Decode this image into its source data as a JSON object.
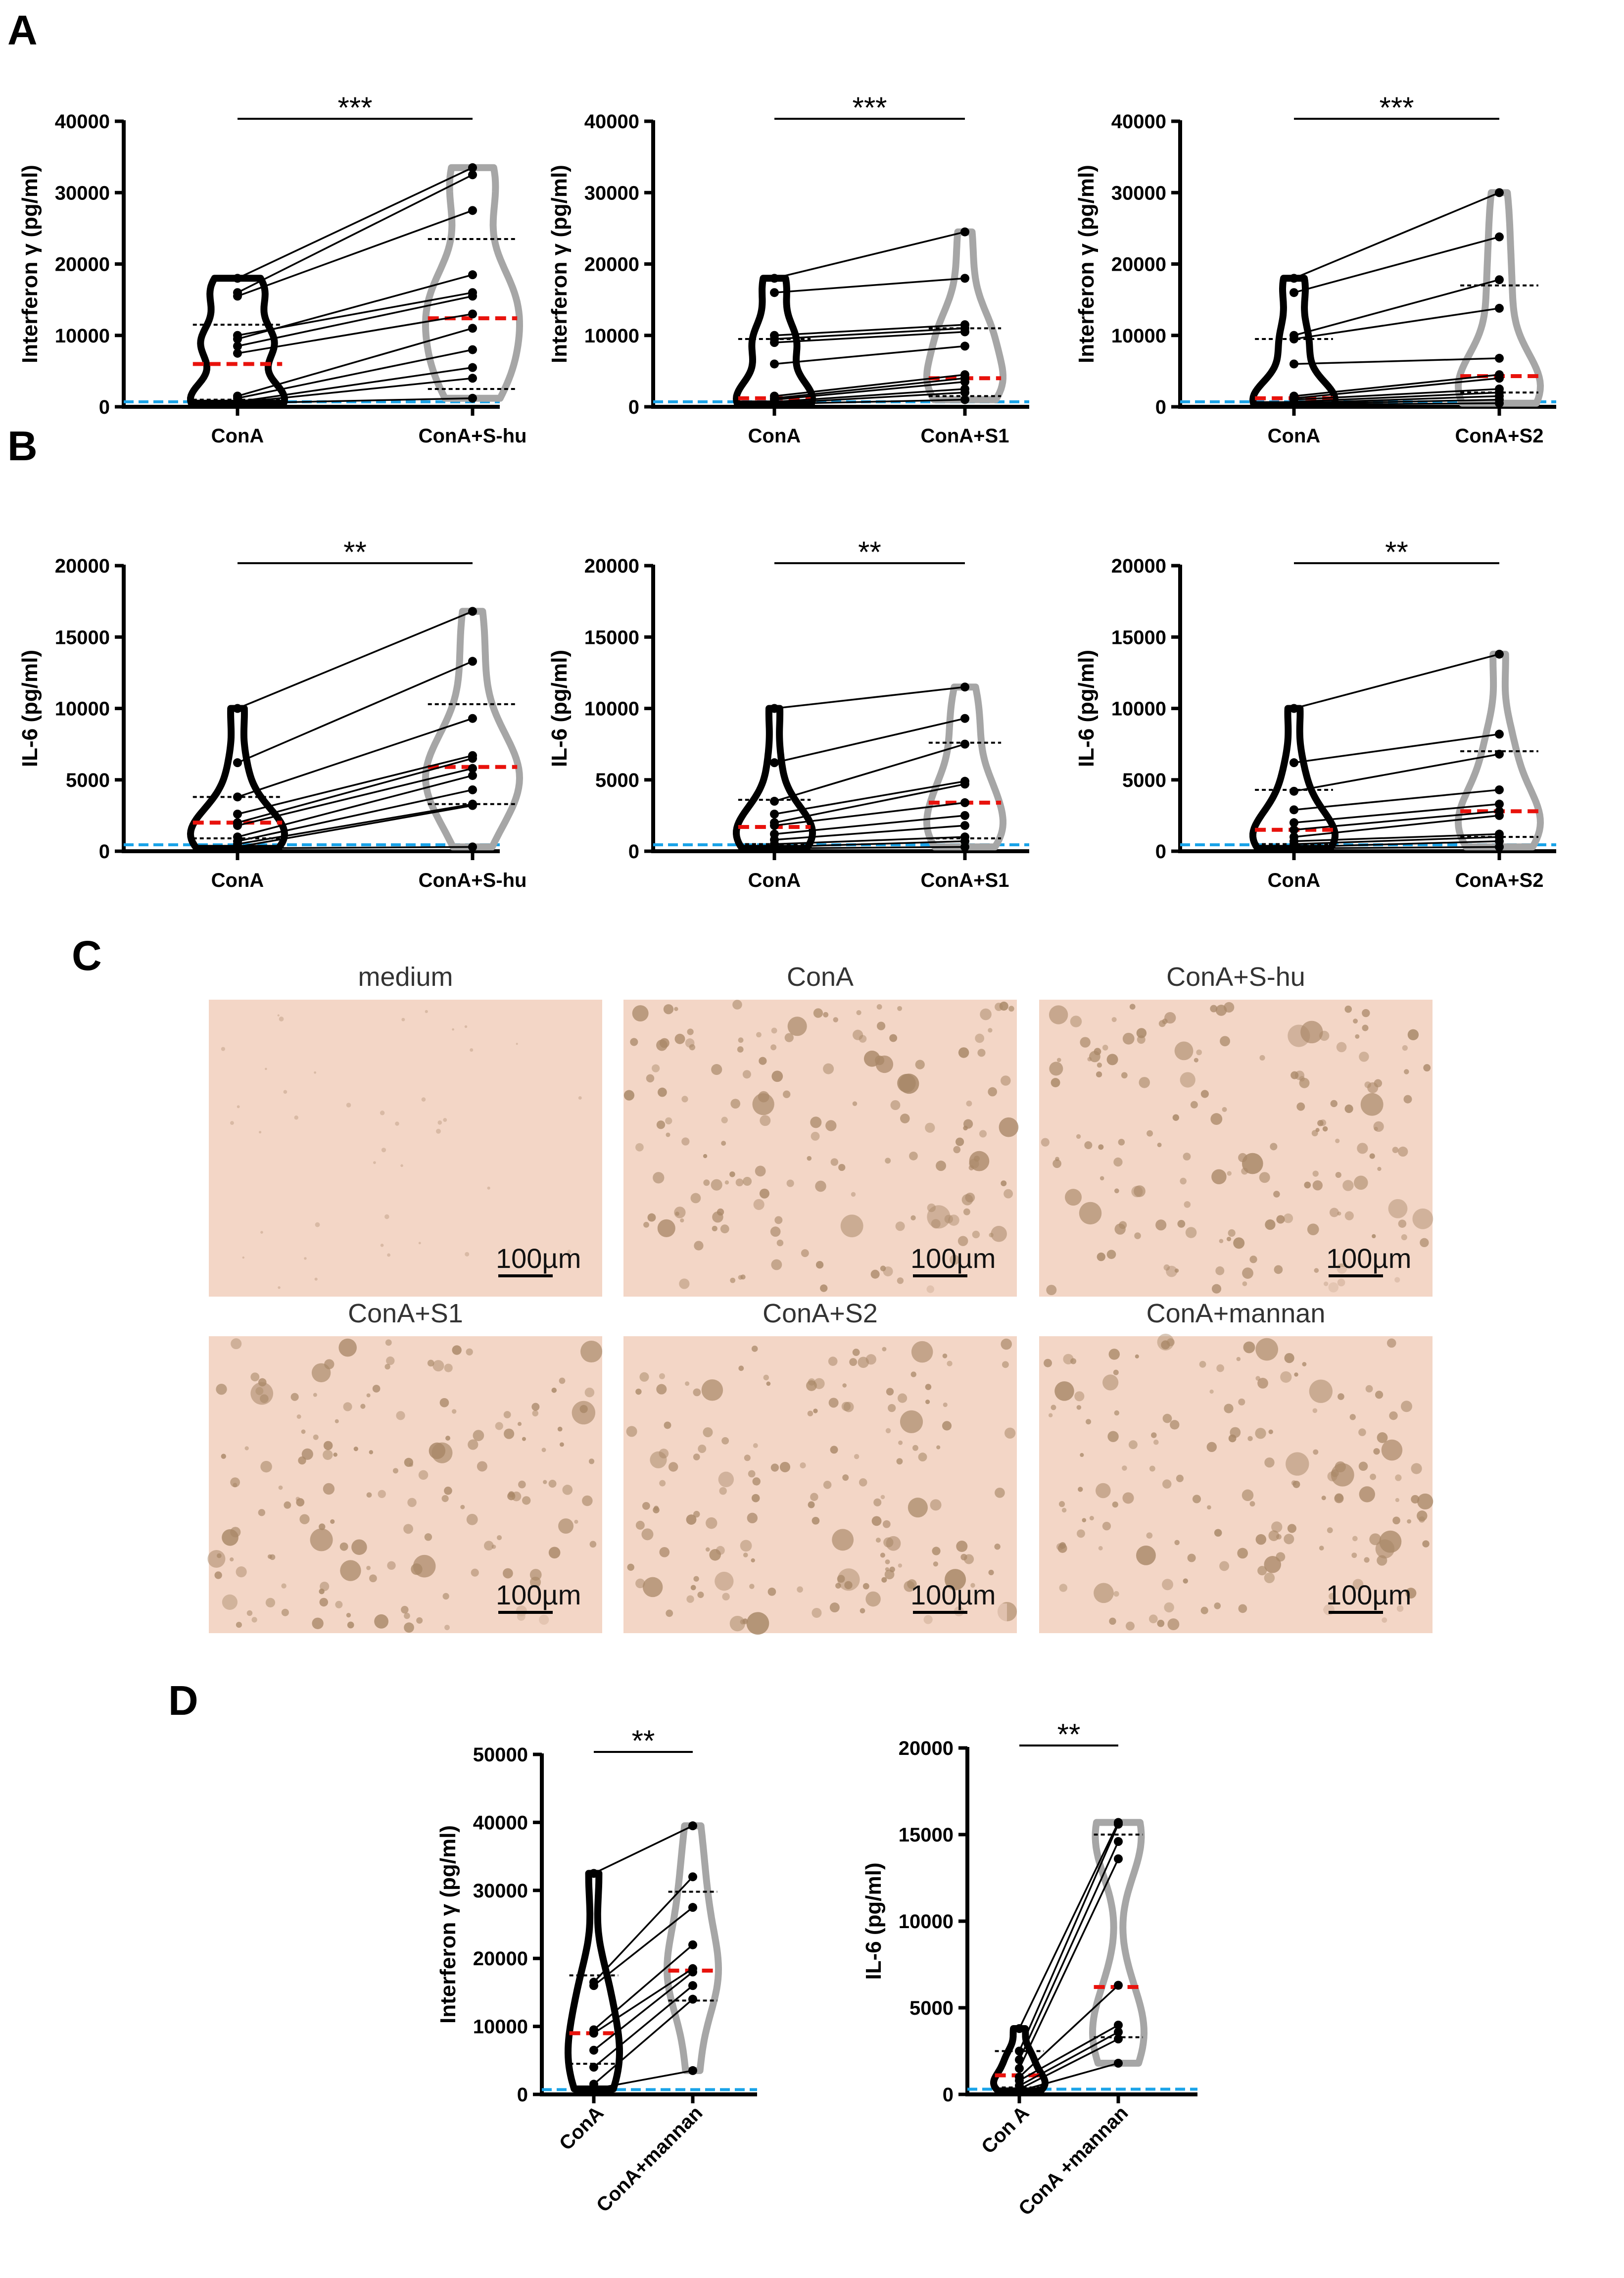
{
  "panel_letters": [
    "A",
    "B",
    "C",
    "D"
  ],
  "colors": {
    "group1": "#000000",
    "group2": "#a6a6a6",
    "median": "#e8120c",
    "quartile": "#000000",
    "detection_limit": "#1aa3e8",
    "photo_background": "#f3d6c6",
    "spot": "#a98868"
  },
  "photo_panel": {
    "scale_label": "100µm",
    "labels": [
      "medium",
      "ConA",
      "ConA+S-hu",
      "ConA+S1",
      "ConA+S2",
      "ConA+mannan"
    ],
    "spot_density": [
      "very few",
      "many",
      "many",
      "many",
      "many",
      "many"
    ]
  },
  "chart_data": [
    {
      "panel": "A",
      "type": "violin-paired",
      "ylabel": "Interferon γ (pg/ml)",
      "ylim": [
        0,
        40000
      ],
      "yticks": [
        "0",
        "10000",
        "20000",
        "30000",
        "40000"
      ],
      "categories": [
        "ConA",
        "ConA+S-hu"
      ],
      "significance": "***",
      "pairs": [
        [
          18000,
          33500
        ],
        [
          16000,
          32500
        ],
        [
          15500,
          27500
        ],
        [
          9500,
          18500
        ],
        [
          10000,
          16000
        ],
        [
          8500,
          15500
        ],
        [
          7500,
          13000
        ],
        [
          1500,
          11000
        ],
        [
          1200,
          8000
        ],
        [
          700,
          5500
        ],
        [
          600,
          4000
        ],
        [
          500,
          1200
        ]
      ],
      "median": [
        6000,
        12400
      ],
      "q1": [
        1000,
        2500
      ],
      "q3": [
        11500,
        23500
      ],
      "detection_limit": 700
    },
    {
      "panel": "A",
      "type": "violin-paired",
      "ylabel": "Interferon γ (pg/ml)",
      "ylim": [
        0,
        40000
      ],
      "yticks": [
        "0",
        "10000",
        "20000",
        "30000",
        "40000"
      ],
      "categories": [
        "ConA",
        "ConA+S1"
      ],
      "significance": "***",
      "pairs": [
        [
          18000,
          24500
        ],
        [
          16000,
          18000
        ],
        [
          10000,
          11500
        ],
        [
          9500,
          11000
        ],
        [
          9000,
          10500
        ],
        [
          6000,
          8500
        ],
        [
          1500,
          4500
        ],
        [
          1200,
          4000
        ],
        [
          1000,
          3500
        ],
        [
          700,
          2500
        ],
        [
          500,
          2000
        ],
        [
          400,
          1000
        ]
      ],
      "median": [
        1200,
        4000
      ],
      "q1": [
        500,
        1500
      ],
      "q3": [
        9500,
        11000
      ],
      "detection_limit": 700
    },
    {
      "panel": "A",
      "type": "violin-paired",
      "ylabel": "Interferon γ (pg/ml)",
      "ylim": [
        0,
        40000
      ],
      "yticks": [
        "0",
        "10000",
        "20000",
        "30000",
        "40000"
      ],
      "categories": [
        "ConA",
        "ConA+S2"
      ],
      "significance": "***",
      "pairs": [
        [
          18000,
          30000
        ],
        [
          16000,
          23800
        ],
        [
          10000,
          17800
        ],
        [
          9500,
          13800
        ],
        [
          6000,
          6800
        ],
        [
          1500,
          4500
        ],
        [
          1200,
          4000
        ],
        [
          1000,
          2500
        ],
        [
          700,
          2000
        ],
        [
          500,
          1500
        ],
        [
          400,
          1000
        ],
        [
          300,
          500
        ]
      ],
      "median": [
        1200,
        4300
      ],
      "q1": [
        500,
        2000
      ],
      "q3": [
        9500,
        17000
      ],
      "detection_limit": 700
    },
    {
      "panel": "B",
      "type": "violin-paired",
      "ylabel": "IL-6 (pg/ml)",
      "ylim": [
        0,
        20000
      ],
      "yticks": [
        "0",
        "5000",
        "10000",
        "15000",
        "20000"
      ],
      "categories": [
        "ConA",
        "ConA+S-hu"
      ],
      "significance": "**",
      "pairs": [
        [
          10000,
          16800
        ],
        [
          6200,
          13300
        ],
        [
          3800,
          9300
        ],
        [
          2600,
          6700
        ],
        [
          2000,
          6500
        ],
        [
          1800,
          5800
        ],
        [
          1000,
          5300
        ],
        [
          700,
          4300
        ],
        [
          500,
          3300
        ],
        [
          300,
          3200
        ],
        [
          200,
          300
        ]
      ],
      "median": [
        2000,
        5900
      ],
      "q1": [
        900,
        3300
      ],
      "q3": [
        3800,
        10300
      ],
      "detection_limit": 450
    },
    {
      "panel": "B",
      "type": "violin-paired",
      "ylabel": "IL-6 (pg/ml)",
      "ylim": [
        0,
        20000
      ],
      "yticks": [
        "0",
        "5000",
        "10000",
        "15000",
        "20000"
      ],
      "categories": [
        "ConA",
        "ConA+S1"
      ],
      "significance": "**",
      "pairs": [
        [
          10000,
          11500
        ],
        [
          6200,
          9300
        ],
        [
          3500,
          7500
        ],
        [
          2600,
          4900
        ],
        [
          2000,
          4700
        ],
        [
          1800,
          3400
        ],
        [
          1200,
          2500
        ],
        [
          800,
          1800
        ],
        [
          500,
          1000
        ],
        [
          300,
          700
        ],
        [
          200,
          300
        ]
      ],
      "median": [
        1700,
        3400
      ],
      "q1": [
        500,
        900
      ],
      "q3": [
        3600,
        7600
      ],
      "detection_limit": 450
    },
    {
      "panel": "B",
      "type": "violin-paired",
      "ylabel": "IL-6 (pg/ml)",
      "ylim": [
        0,
        20000
      ],
      "yticks": [
        "0",
        "5000",
        "10000",
        "15000",
        "20000"
      ],
      "categories": [
        "ConA",
        "ConA+S2"
      ],
      "significance": "**",
      "pairs": [
        [
          10000,
          13800
        ],
        [
          6200,
          8200
        ],
        [
          4200,
          6800
        ],
        [
          2900,
          4300
        ],
        [
          2000,
          3300
        ],
        [
          1500,
          2800
        ],
        [
          1000,
          2500
        ],
        [
          700,
          1200
        ],
        [
          500,
          1000
        ],
        [
          300,
          700
        ],
        [
          200,
          300
        ]
      ],
      "median": [
        1500,
        2800
      ],
      "q1": [
        500,
        1000
      ],
      "q3": [
        4300,
        7000
      ],
      "detection_limit": 450
    },
    {
      "panel": "D",
      "type": "violin-paired",
      "ylabel": "Interferon γ (pg/ml)",
      "ylim": [
        0,
        50000
      ],
      "yticks": [
        "0",
        "10000",
        "20000",
        "30000",
        "40000",
        "50000"
      ],
      "categories": [
        "ConA",
        "ConA+mannan"
      ],
      "significance": "**",
      "pairs": [
        [
          32500,
          39500
        ],
        [
          16500,
          32000
        ],
        [
          16000,
          27500
        ],
        [
          9500,
          22000
        ],
        [
          9000,
          18500
        ],
        [
          6500,
          18000
        ],
        [
          4000,
          16000
        ],
        [
          1500,
          14000
        ],
        [
          800,
          3500
        ]
      ],
      "median": [
        9000,
        18200
      ],
      "q1": [
        4500,
        13800
      ],
      "q3": [
        17500,
        29800
      ],
      "detection_limit": 700
    },
    {
      "panel": "D",
      "type": "violin-paired",
      "ylabel": "IL-6 (pg/ml)",
      "ylim": [
        0,
        20000
      ],
      "yticks": [
        "0",
        "5000",
        "10000",
        "15000",
        "20000"
      ],
      "categories": [
        "Con A",
        "ConA +mannan"
      ],
      "significance": "**",
      "pairs": [
        [
          3800,
          15700
        ],
        [
          2500,
          15600
        ],
        [
          2000,
          14600
        ],
        [
          1500,
          13600
        ],
        [
          1000,
          6300
        ],
        [
          800,
          4000
        ],
        [
          500,
          3600
        ],
        [
          300,
          3200
        ],
        [
          200,
          1800
        ]
      ],
      "median": [
        1100,
        6200
      ],
      "q1": [
        400,
        3300
      ],
      "q3": [
        2500,
        15000
      ],
      "detection_limit": 300
    }
  ]
}
